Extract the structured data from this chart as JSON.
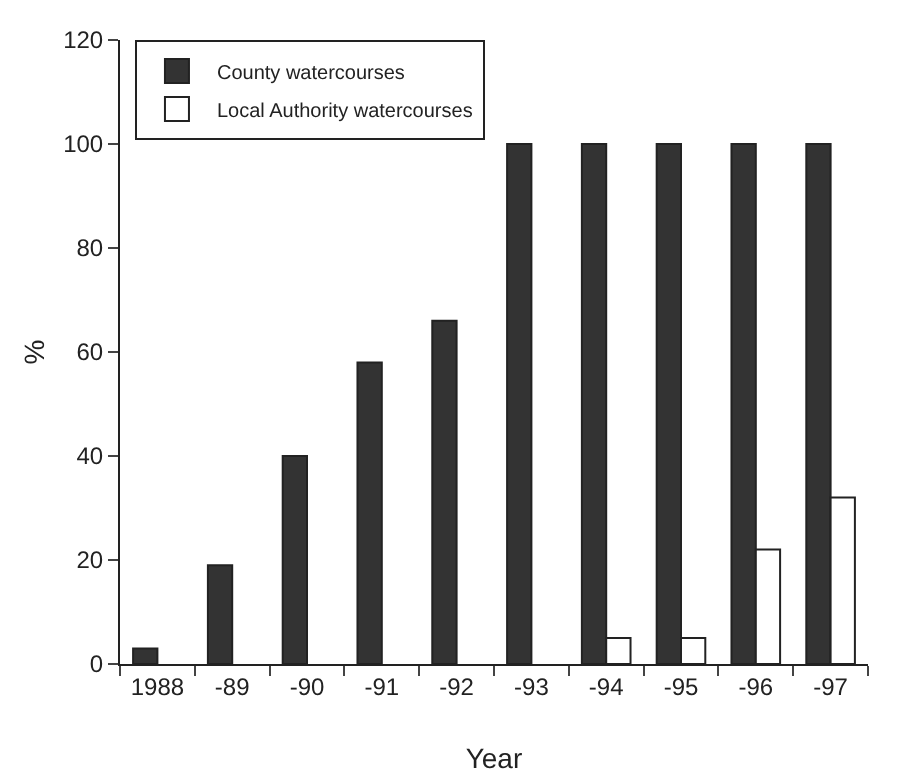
{
  "chart_data": {
    "type": "bar",
    "xlabel": "Year",
    "ylabel": "%",
    "categories": [
      "1988",
      "-89",
      "-90",
      "-91",
      "-92",
      "-93",
      "-94",
      "-95",
      "-96",
      "-97"
    ],
    "series": [
      {
        "name": "County watercourses",
        "color": "#333333",
        "values": [
          3,
          19,
          40,
          58,
          66,
          100,
          100,
          100,
          100,
          100
        ]
      },
      {
        "name": "Local Authority watercourses",
        "color": "#ffffff",
        "values": [
          null,
          null,
          null,
          null,
          null,
          null,
          5,
          5,
          22,
          32
        ]
      }
    ],
    "ylim": [
      0,
      120
    ],
    "yticks": [
      0,
      20,
      40,
      60,
      80,
      100,
      120
    ],
    "grid": false,
    "legend": "top left"
  }
}
